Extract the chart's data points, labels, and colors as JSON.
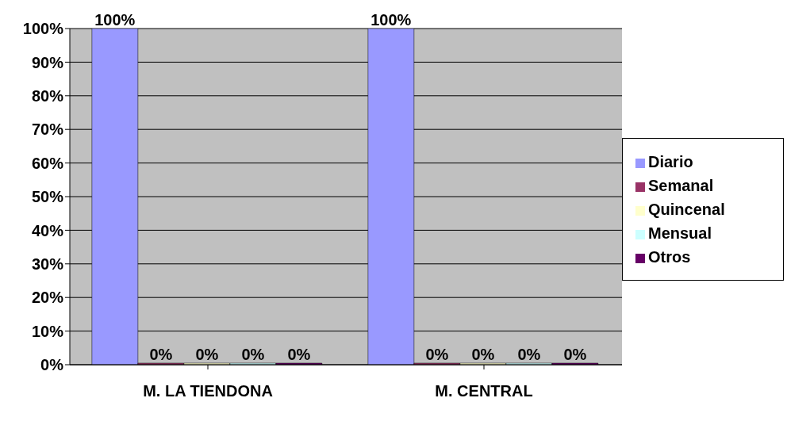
{
  "chart_data": {
    "type": "bar",
    "categories": [
      "M. LA TIENDONA",
      "M. CENTRAL"
    ],
    "series": [
      {
        "name": "Diario",
        "color": "#9999ff",
        "values": [
          100,
          100
        ],
        "value_labels": [
          "100%",
          "100%"
        ]
      },
      {
        "name": "Semanal",
        "color": "#993366",
        "values": [
          0,
          0
        ],
        "value_labels": [
          "0%",
          "0%"
        ]
      },
      {
        "name": "Quincenal",
        "color": "#ffffcc",
        "values": [
          0,
          0
        ],
        "value_labels": [
          "0%",
          "0%"
        ]
      },
      {
        "name": "Mensual",
        "color": "#ccffff",
        "values": [
          0,
          0
        ],
        "value_labels": [
          "0%",
          "0%"
        ]
      },
      {
        "name": "Otros",
        "color": "#660066",
        "values": [
          0,
          0
        ],
        "value_labels": [
          "0%",
          "0%"
        ]
      }
    ],
    "ylim": [
      0,
      100
    ],
    "yticks": [
      {
        "value": 0,
        "label": "0%"
      },
      {
        "value": 10,
        "label": "10%"
      },
      {
        "value": 20,
        "label": "20%"
      },
      {
        "value": 30,
        "label": "30%"
      },
      {
        "value": 40,
        "label": "40%"
      },
      {
        "value": 50,
        "label": "50%"
      },
      {
        "value": 60,
        "label": "60%"
      },
      {
        "value": 70,
        "label": "70%"
      },
      {
        "value": 80,
        "label": "80%"
      },
      {
        "value": 90,
        "label": "90%"
      },
      {
        "value": 100,
        "label": "100%"
      }
    ],
    "grid": "y",
    "legend": "right"
  }
}
